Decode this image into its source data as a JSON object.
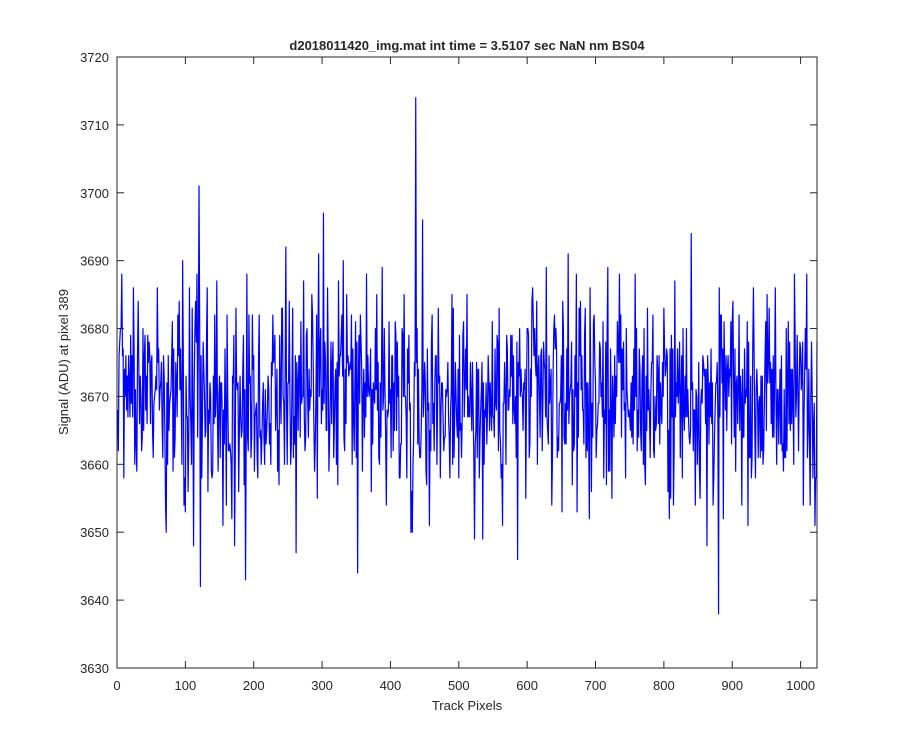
{
  "chart_data": {
    "type": "line",
    "title": "d2018011420_img.mat int time = 3.5107 sec  NaN nm BS04",
    "xlabel": "Track Pixels",
    "ylabel": "Signal (ADU) at pixel 389",
    "xlim": [
      0,
      1024
    ],
    "ylim": [
      3630,
      3720
    ],
    "xticks": [
      0,
      100,
      200,
      300,
      400,
      500,
      600,
      700,
      800,
      900,
      1000
    ],
    "yticks": [
      3630,
      3640,
      3650,
      3660,
      3670,
      3680,
      3690,
      3700,
      3710,
      3720
    ],
    "grid": false,
    "legend": "none",
    "series": [
      {
        "color": "#0000ff",
        "x_start": 1,
        "x_step": 1,
        "typical_range": [
          3650,
          3690
        ],
        "noise_seed": 1420,
        "points": [
          [
            1,
            3668
          ],
          [
            7,
            3688
          ],
          [
            10,
            3658
          ],
          [
            59,
            3686
          ],
          [
            72,
            3650
          ],
          [
            96,
            3690
          ],
          [
            112,
            3648
          ],
          [
            120,
            3701
          ],
          [
            122,
            3642
          ],
          [
            160,
            3654
          ],
          [
            168,
            3652
          ],
          [
            172,
            3648
          ],
          [
            188,
            3643
          ],
          [
            190,
            3688
          ],
          [
            247,
            3692
          ],
          [
            262,
            3647
          ],
          [
            295,
            3691
          ],
          [
            302,
            3697
          ],
          [
            352,
            3644
          ],
          [
            388,
            3689
          ],
          [
            420,
            3685
          ],
          [
            432,
            3650
          ],
          [
            437,
            3714
          ],
          [
            447,
            3696
          ],
          [
            490,
            3685
          ],
          [
            523,
            3649
          ],
          [
            535,
            3649
          ],
          [
            586,
            3646
          ],
          [
            660,
            3691
          ],
          [
            672,
            3688
          ],
          [
            735,
            3688
          ],
          [
            758,
            3688
          ],
          [
            840,
            3694
          ],
          [
            863,
            3648
          ],
          [
            880,
            3638
          ],
          [
            1009,
            3688
          ],
          [
            1022,
            3658
          ],
          [
            1024,
            3678
          ]
        ]
      }
    ]
  }
}
